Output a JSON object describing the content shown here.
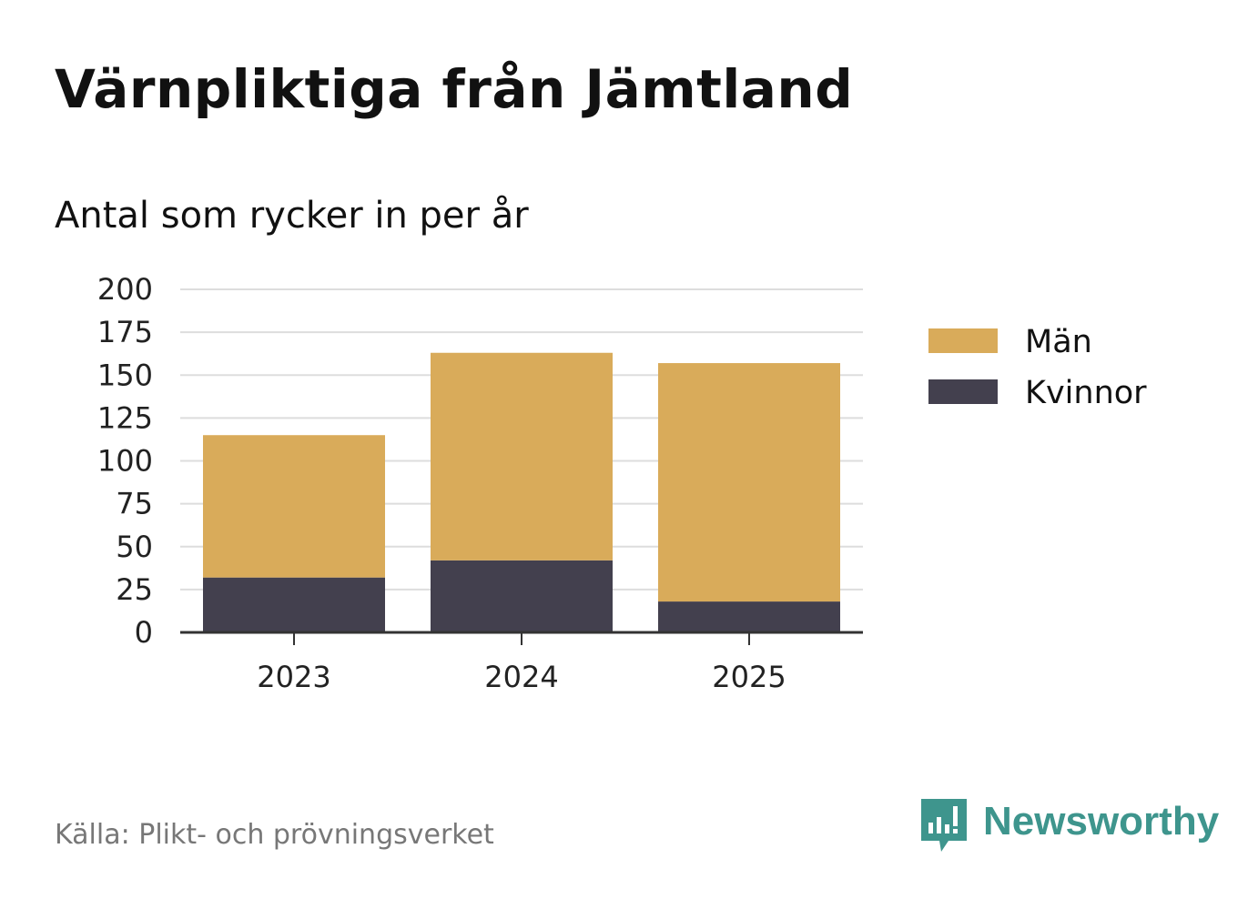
{
  "header": {
    "title": "Värnpliktiga från Jämtland",
    "subtitle": "Antal som rycker in per år"
  },
  "chart_data": {
    "type": "bar",
    "stacked": true,
    "categories": [
      "2023",
      "2024",
      "2025"
    ],
    "series": [
      {
        "name": "Kvinnor",
        "values": [
          32,
          42,
          18
        ],
        "color": "#43404e"
      },
      {
        "name": "Män",
        "values": [
          83,
          121,
          139
        ],
        "color": "#d9ab5a"
      }
    ],
    "ylim": [
      0,
      200
    ],
    "yticks": [
      0,
      25,
      50,
      75,
      100,
      125,
      150,
      175,
      200
    ],
    "grid": true,
    "legend": "right",
    "legend_order": [
      "Män",
      "Kvinnor"
    ]
  },
  "footer": {
    "source": "Källa: Plikt- och prövningsverket",
    "brand": "Newsworthy",
    "brand_icon": "newsworthy-logo-icon",
    "brand_color": "#3e958d"
  }
}
